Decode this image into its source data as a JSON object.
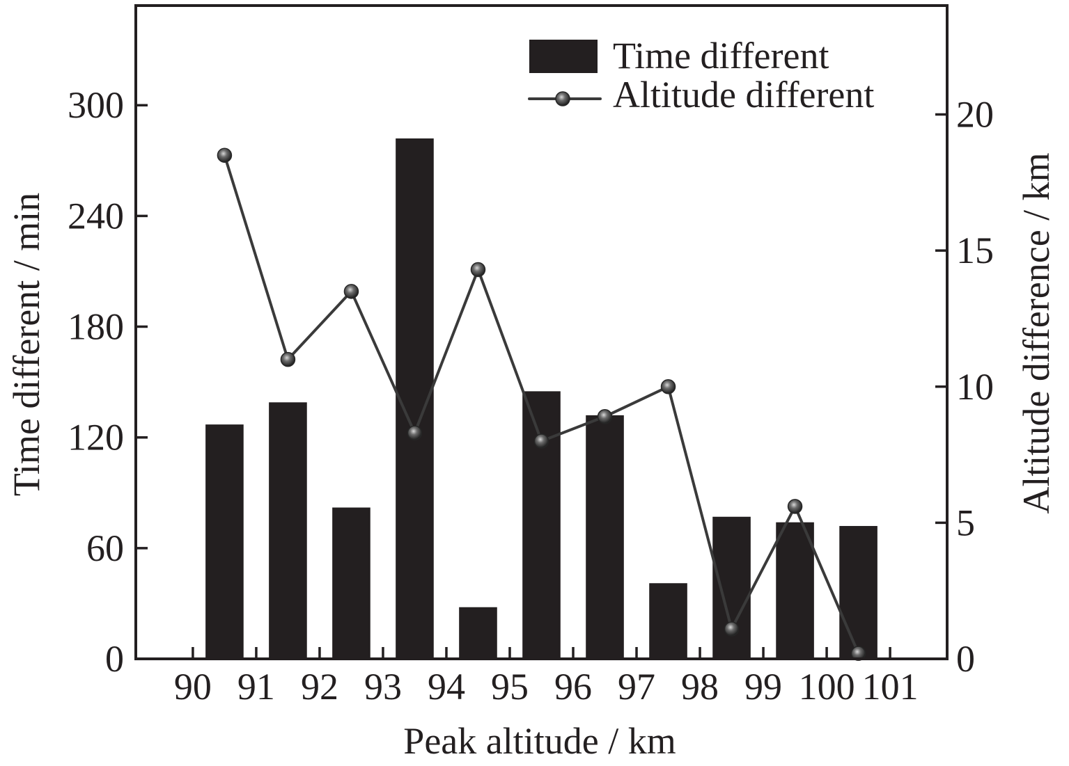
{
  "chart_data": {
    "type": "bar",
    "x": [
      90.5,
      91.5,
      92.5,
      93.5,
      94.5,
      95.5,
      96.5,
      97.5,
      98.5,
      99.5,
      100.5
    ],
    "xlabel": "Peak altitude / km",
    "ylabel": "Time different / min",
    "y2label": "Altitude difference / km",
    "xlim": [
      89.1,
      101.9
    ],
    "ylim": [
      0,
      354
    ],
    "y2lim": [
      0,
      24
    ],
    "xticks": [
      90,
      91,
      92,
      93,
      94,
      95,
      96,
      97,
      98,
      99,
      100,
      101
    ],
    "yticks": [
      0,
      60,
      120,
      180,
      240,
      300
    ],
    "y2ticks": [
      0,
      5,
      10,
      15,
      20
    ],
    "series": [
      {
        "name": "Time different",
        "type": "bar",
        "axis": "left",
        "values": [
          127,
          139,
          82,
          282,
          28,
          145,
          132,
          41,
          77,
          74,
          72
        ],
        "color": "#231f20"
      },
      {
        "name": "Altitude different",
        "type": "line",
        "axis": "right",
        "marker": "circle",
        "values": [
          18.5,
          11.0,
          13.5,
          8.3,
          14.3,
          8.0,
          8.9,
          10.0,
          1.1,
          5.6,
          0.2
        ],
        "color": "#3a3a3a"
      }
    ],
    "legend": "top-right",
    "grid": false
  },
  "colors": {
    "background": "#ffffff",
    "axis": "#231f20"
  }
}
